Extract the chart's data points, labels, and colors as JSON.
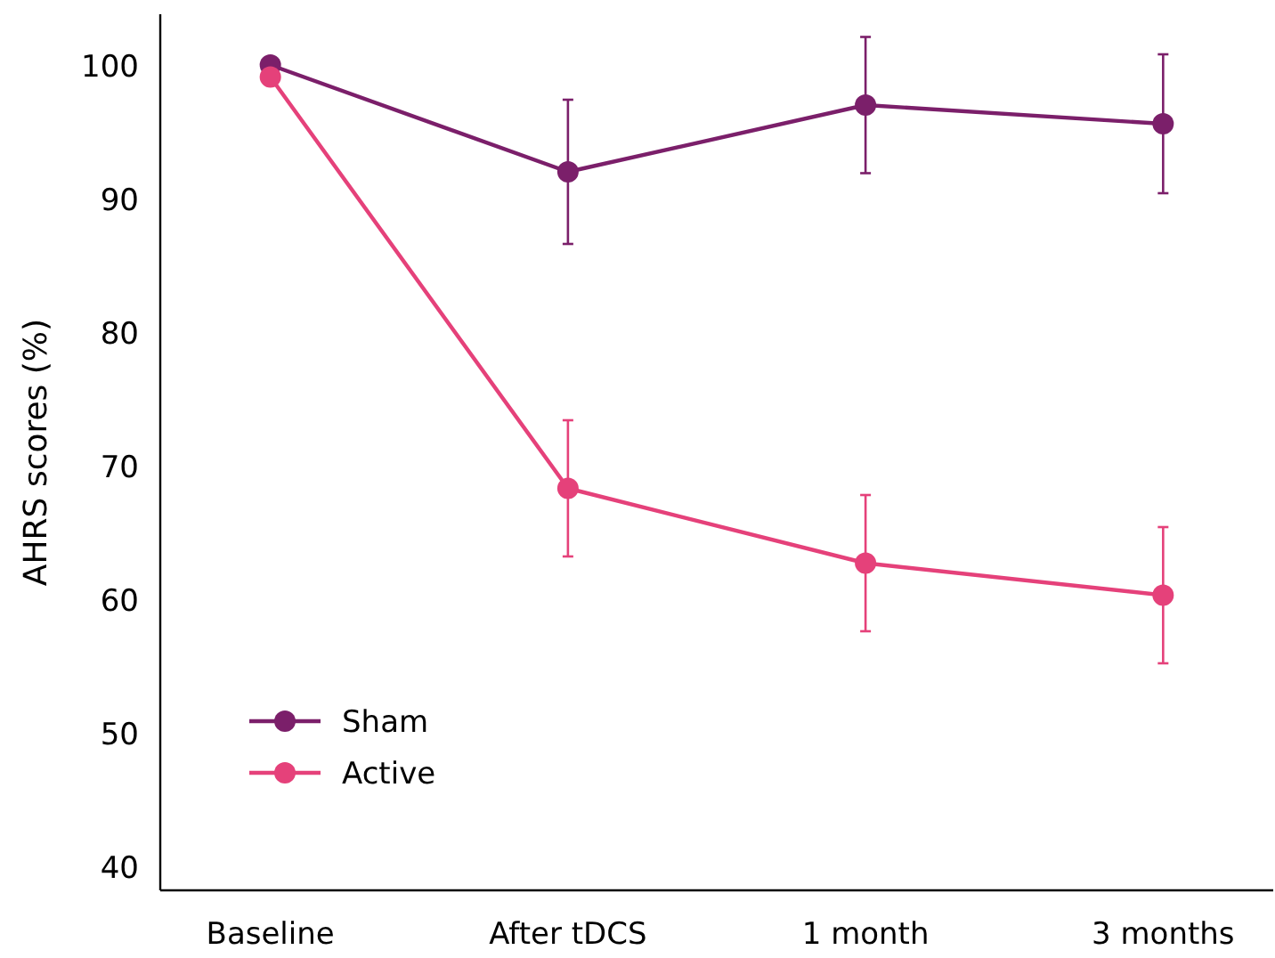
{
  "chart_data": {
    "type": "line",
    "ylabel": "AHRS scores (%)",
    "categories": [
      "Baseline",
      "After tDCS",
      "1 month",
      "3 months"
    ],
    "series": [
      {
        "name": "Sham",
        "color": "#7b1f6a",
        "values": [
          100.1,
          92.1,
          97.1,
          95.7
        ],
        "errors": [
          null,
          5.4,
          5.1,
          5.2
        ]
      },
      {
        "name": "Active",
        "color": "#e5417a",
        "values": [
          99.2,
          68.4,
          62.8,
          60.4
        ],
        "errors": [
          null,
          5.1,
          5.1,
          5.1
        ]
      }
    ],
    "ylim": [
      38.3,
      103.9
    ],
    "yticks": [
      40,
      50,
      60,
      70,
      80,
      90,
      100
    ],
    "marker": "circle",
    "legend": "bottom left",
    "grid": false
  }
}
